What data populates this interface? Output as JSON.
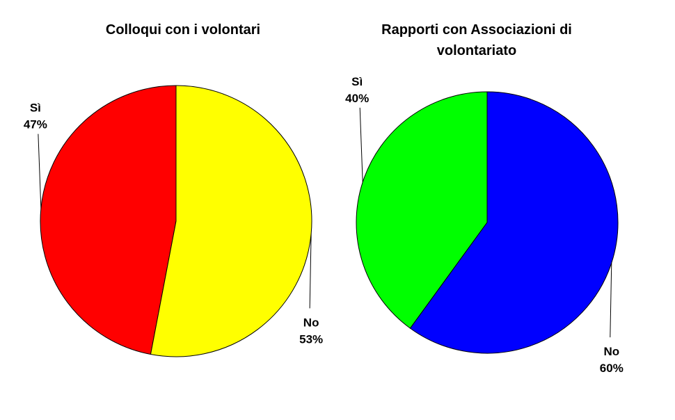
{
  "chart_data": [
    {
      "type": "pie",
      "title": "Colloqui con i volontari",
      "categories": [
        "Sì",
        "No"
      ],
      "values": [
        47,
        53
      ],
      "value_labels": [
        "47%",
        "53%"
      ],
      "colors": [
        "#ff0000",
        "#ffff00"
      ]
    },
    {
      "type": "pie",
      "title": "Rapporti con Associazioni di volontariato",
      "categories": [
        "Sì",
        "No"
      ],
      "values": [
        40,
        60
      ],
      "value_labels": [
        "40%",
        "60%"
      ],
      "colors": [
        "#00ff00",
        "#0000ff"
      ]
    }
  ]
}
